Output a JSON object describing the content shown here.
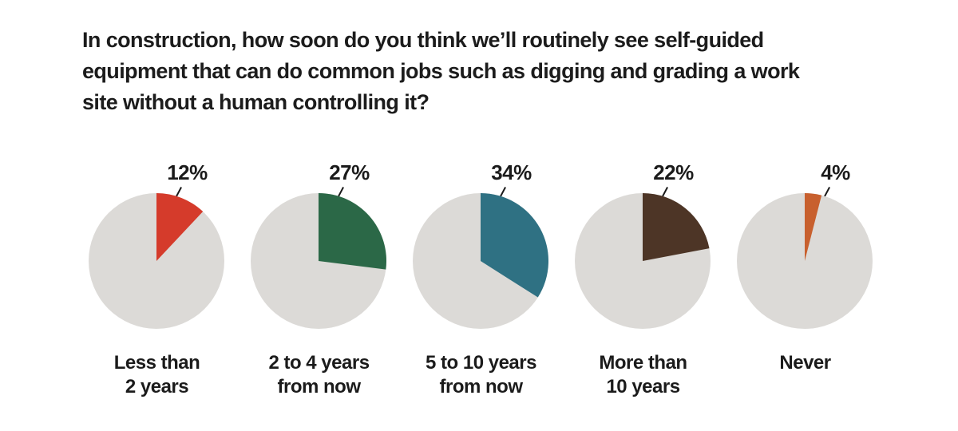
{
  "page": {
    "background": "#ffffff",
    "text_color": "#1c1c1c"
  },
  "title": "In construction, how soon do you think we’ll routinely see self-guided\nequipment that can do common jobs such as digging and grading a work\nsite without a human controlling it?",
  "chart_data": {
    "type": "pie",
    "layout": "small-multiples-row",
    "title": "In construction, how soon do you think we’ll routinely see self-guided equipment that can do common jobs such as digging and grading a work site without a human controlling it?",
    "categories": [
      "Less than\n2 years",
      "2 to 4 years\nfrom now",
      "5 to 10 years\nfrom now",
      "More than\n10 years",
      "Never"
    ],
    "values": [
      12,
      27,
      34,
      22,
      4
    ],
    "value_labels": [
      "12%",
      "27%",
      "34%",
      "22%",
      "4%"
    ],
    "slice_colors": [
      "#d53b2b",
      "#2b6847",
      "#2f7183",
      "#4d3526",
      "#c8602e"
    ],
    "remainder_color": "#dcdad7",
    "leader_line_color": "#1a1a1a",
    "start_angle": "12 o'clock",
    "direction": "clockwise",
    "legend": "none",
    "grid": false
  }
}
